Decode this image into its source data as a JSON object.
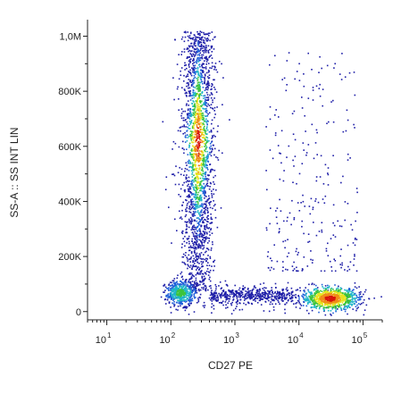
{
  "chart_data": {
    "type": "scatter",
    "subtype": "flow-cytometry density dot plot",
    "xlabel": "CD27 PE",
    "ylabel": "SS-A :: SS INT LIN",
    "x_scale": "log",
    "y_scale": "linear",
    "xlim": [
      5,
      200000
    ],
    "ylim": [
      -30000,
      1060000
    ],
    "x_ticks": [
      {
        "base": "10",
        "exp": "1",
        "value": 10
      },
      {
        "base": "10",
        "exp": "2",
        "value": 100
      },
      {
        "base": "10",
        "exp": "3",
        "value": 1000
      },
      {
        "base": "10",
        "exp": "4",
        "value": 10000
      },
      {
        "base": "10",
        "exp": "5",
        "value": 100000
      }
    ],
    "y_ticks": [
      {
        "label": "0",
        "value": 0
      },
      {
        "label": "200K",
        "value": 200000
      },
      {
        "label": "400K",
        "value": 400000
      },
      {
        "label": "600K",
        "value": 600000
      },
      {
        "label": "800K",
        "value": 800000
      },
      {
        "label": "1,0M",
        "value": 1000000
      }
    ],
    "grid": false,
    "legend": "none",
    "color_scale": [
      "#1e1ea8",
      "#1f5fd9",
      "#20b6c8",
      "#3cc43c",
      "#e6e31e",
      "#f08a18",
      "#d8140c"
    ],
    "populations": [
      {
        "description": "CD27-negative granulocytes, vertical streak",
        "x_center": 260,
        "x_log_spread": 0.1,
        "y_min": 80000,
        "y_max": 1020000,
        "y_peak": 620000
      },
      {
        "description": "CD27-negative low side-scatter cluster",
        "x_center": 140,
        "y_center": 70000,
        "x_log_spread": 0.12,
        "y_spread": 22000
      },
      {
        "description": "CD27-positive low side-scatter cluster",
        "x_center": 30000,
        "y_center": 50000,
        "x_log_spread": 0.16,
        "y_spread": 18000
      },
      {
        "description": "bridge events between clusters",
        "x_min": 400,
        "x_max": 8000,
        "y_center": 60000,
        "y_spread": 15000
      },
      {
        "description": "sparse high side-scatter CD27-positive events",
        "x_min": 3000,
        "x_max": 80000,
        "y_min": 150000,
        "y_max": 950000
      }
    ]
  }
}
